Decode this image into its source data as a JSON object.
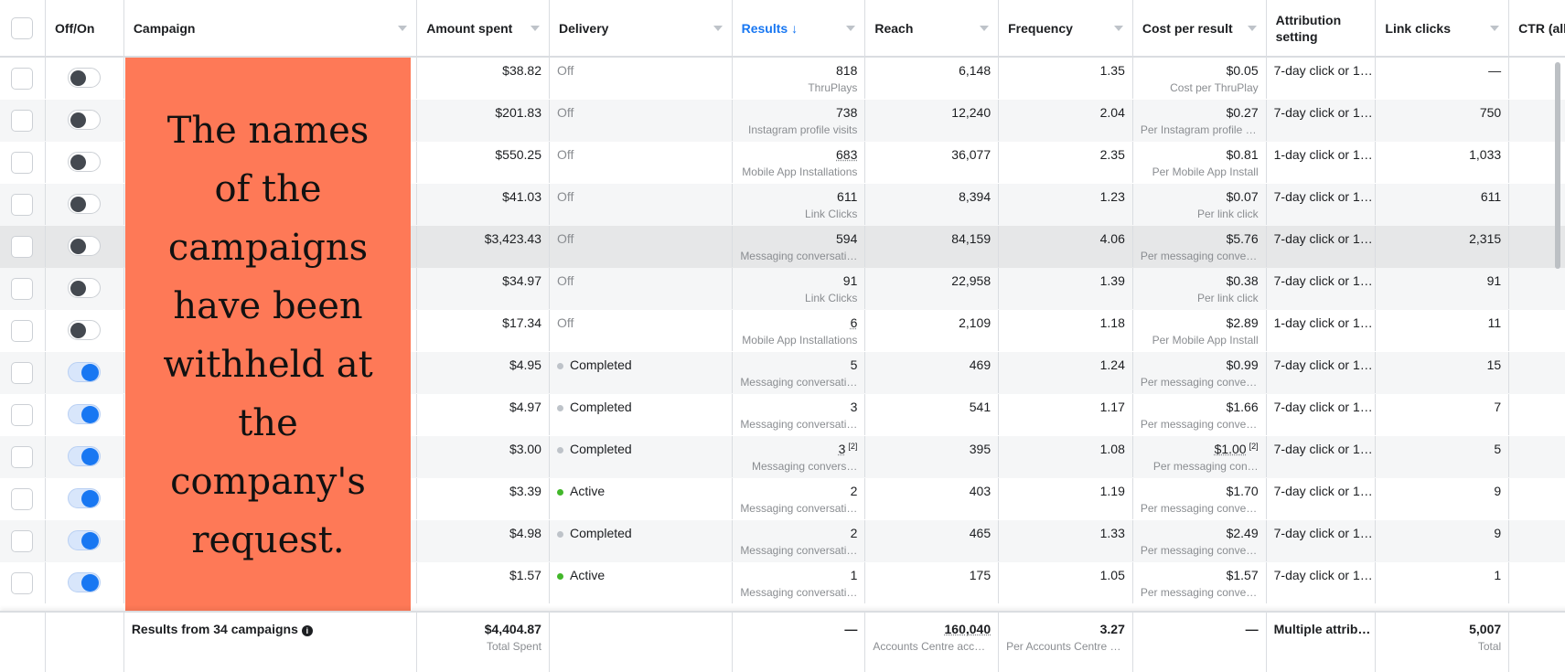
{
  "columns": [
    "Off/On",
    "Campaign",
    "Amount spent",
    "Delivery",
    "Results ↓",
    "Reach",
    "Frequency",
    "Cost per result",
    "Attribution setting",
    "Link clicks",
    "CTR (all)"
  ],
  "redaction_notice": "The names of the campaigns have been withheld at the company's request.",
  "colors": {
    "active": "#42b72a",
    "completed": "#bec3c9",
    "accent": "#1877f2",
    "redaction": "#fe7957"
  },
  "rows": [
    {
      "on": false,
      "amount": "$38.82",
      "delivery": "Off",
      "results": "818",
      "results_sub": "ThruPlays",
      "reach": "6,148",
      "frequency": "1.35",
      "cpr": "$0.05",
      "cpr_sub": "Cost per ThruPlay",
      "attribution": "7-day click or 1…",
      "link_clicks": "—"
    },
    {
      "on": false,
      "amount": "$201.83",
      "delivery": "Off",
      "results": "738",
      "results_sub": "Instagram profile visits",
      "reach": "12,240",
      "frequency": "2.04",
      "cpr": "$0.27",
      "cpr_sub": "Per Instagram profile v…",
      "attribution": "7-day click or 1…",
      "link_clicks": "750"
    },
    {
      "on": false,
      "amount": "$550.25",
      "delivery": "Off",
      "results": "683",
      "results_dotted": true,
      "results_sub": "Mobile App Installations",
      "reach": "36,077",
      "frequency": "2.35",
      "cpr": "$0.81",
      "cpr_sub": "Per Mobile App Install",
      "attribution": "1-day click or 1…",
      "link_clicks": "1,033"
    },
    {
      "on": false,
      "amount": "$41.03",
      "delivery": "Off",
      "results": "611",
      "results_sub": "Link Clicks",
      "reach": "8,394",
      "frequency": "1.23",
      "cpr": "$0.07",
      "cpr_sub": "Per link click",
      "attribution": "7-day click or 1…",
      "link_clicks": "611"
    },
    {
      "on": false,
      "highlight": true,
      "amount": "$3,423.43",
      "delivery": "Off",
      "results": "594",
      "results_sub": "Messaging conversati…",
      "reach": "84,159",
      "frequency": "4.06",
      "cpr": "$5.76",
      "cpr_sub": "Per messaging conver…",
      "attribution": "7-day click or 1…",
      "link_clicks": "2,315"
    },
    {
      "on": false,
      "amount": "$34.97",
      "delivery": "Off",
      "results": "91",
      "results_sub": "Link Clicks",
      "reach": "22,958",
      "frequency": "1.39",
      "cpr": "$0.38",
      "cpr_sub": "Per link click",
      "attribution": "7-day click or 1…",
      "link_clicks": "91"
    },
    {
      "on": false,
      "amount": "$17.34",
      "delivery": "Off",
      "results": "6",
      "results_dotted": true,
      "results_sub": "Mobile App Installations",
      "reach": "2,109",
      "frequency": "1.18",
      "cpr": "$2.89",
      "cpr_sub": "Per Mobile App Install",
      "attribution": "1-day click or 1…",
      "link_clicks": "11"
    },
    {
      "on": true,
      "amount": "$4.95",
      "delivery": "Completed",
      "results": "5",
      "results_sub": "Messaging conversati…",
      "reach": "469",
      "frequency": "1.24",
      "cpr": "$0.99",
      "cpr_sub": "Per messaging conver…",
      "attribution": "7-day click or 1…",
      "link_clicks": "15"
    },
    {
      "on": true,
      "amount": "$4.97",
      "delivery": "Completed",
      "results": "3",
      "results_sub": "Messaging conversati…",
      "reach": "541",
      "frequency": "1.17",
      "cpr": "$1.66",
      "cpr_sub": "Per messaging conver…",
      "attribution": "7-day click or 1…",
      "link_clicks": "7"
    },
    {
      "on": true,
      "amount": "$3.00",
      "delivery": "Completed",
      "results": "3",
      "results_dotted": true,
      "results_note": "[2]",
      "results_sub": "Messaging convers…",
      "reach": "395",
      "frequency": "1.08",
      "cpr": "$1.00",
      "cpr_dotted": true,
      "cpr_note": "[2]",
      "cpr_sub": "Per messaging con…",
      "attribution": "7-day click or 1…",
      "link_clicks": "5"
    },
    {
      "on": true,
      "amount": "$3.39",
      "delivery": "Active",
      "results": "2",
      "results_sub": "Messaging conversati…",
      "reach": "403",
      "frequency": "1.19",
      "cpr": "$1.70",
      "cpr_sub": "Per messaging conver…",
      "attribution": "7-day click or 1…",
      "link_clicks": "9"
    },
    {
      "on": true,
      "amount": "$4.98",
      "delivery": "Completed",
      "results": "2",
      "results_sub": "Messaging conversati…",
      "reach": "465",
      "frequency": "1.33",
      "cpr": "$2.49",
      "cpr_sub": "Per messaging conver…",
      "attribution": "7-day click or 1…",
      "link_clicks": "9"
    },
    {
      "on": true,
      "amount": "$1.57",
      "delivery": "Active",
      "results": "1",
      "results_sub": "Messaging conversati…",
      "reach": "175",
      "frequency": "1.05",
      "cpr": "$1.57",
      "cpr_sub": "Per messaging conver…",
      "attribution": "7-day click or 1…",
      "link_clicks": "1"
    }
  ],
  "footer": {
    "label": "Results from 34 campaigns",
    "amount": "$4,404.87",
    "amount_sub": "Total Spent",
    "results": "—",
    "reach": "160,040",
    "reach_sub": "Accounts Centre acco…",
    "frequency": "3.27",
    "frequency_sub": "Per Accounts Centre a…",
    "cpr": "—",
    "attribution": "Multiple attrib…",
    "link_clicks": "5,007",
    "link_clicks_sub": "Total"
  }
}
